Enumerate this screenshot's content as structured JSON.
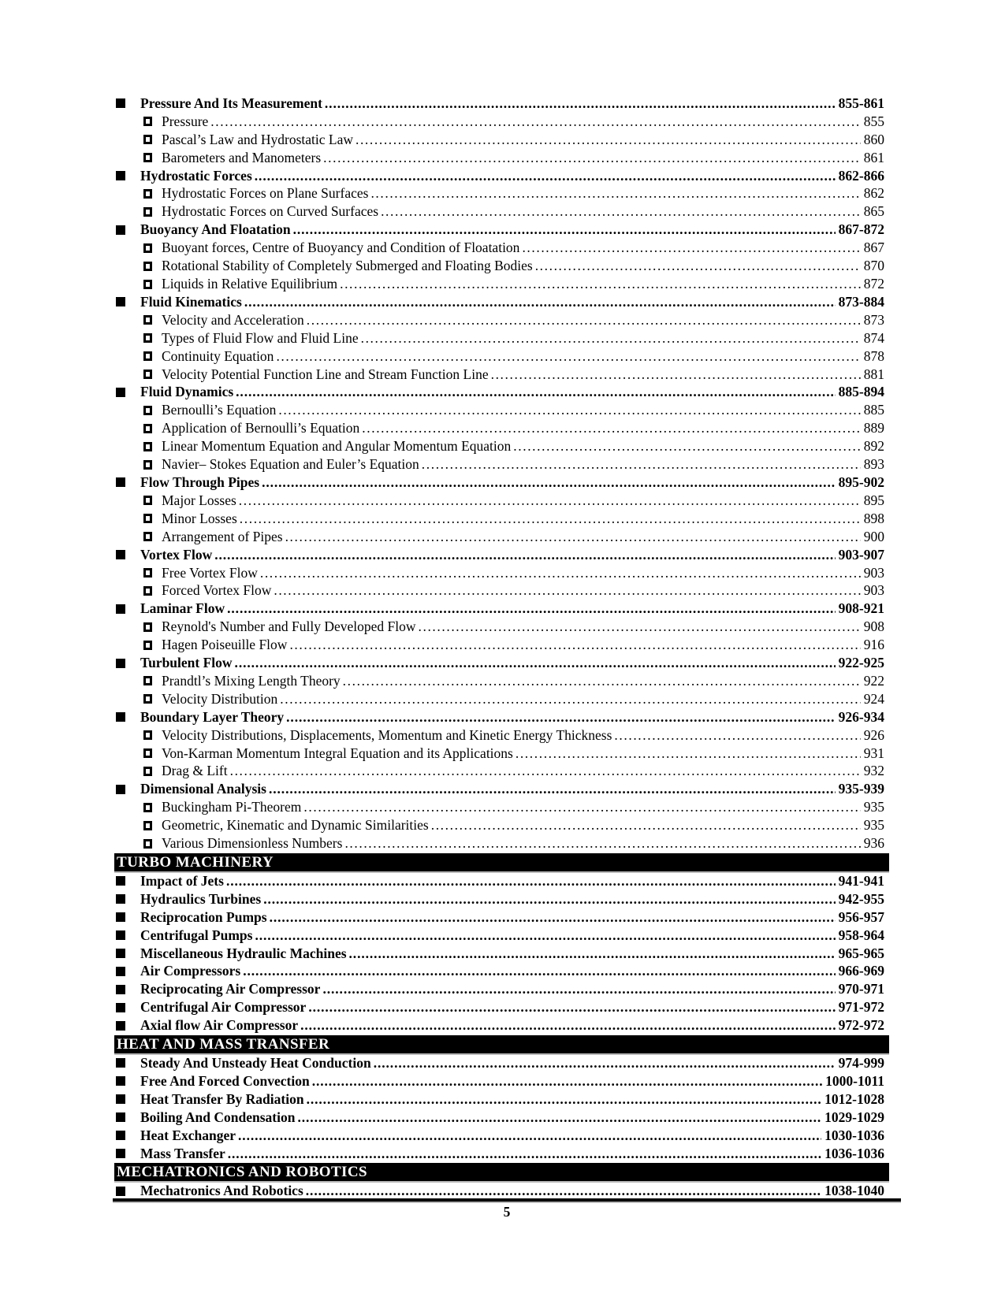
{
  "toc": [
    {
      "kind": "chapter",
      "label": "Pressure And Its Measurement",
      "pages": "855-861"
    },
    {
      "kind": "topic",
      "label": "Pressure",
      "pages": "855"
    },
    {
      "kind": "topic",
      "label": "Pascal’s Law and Hydrostatic Law",
      "pages": "860"
    },
    {
      "kind": "topic",
      "label": "Barometers and Manometers",
      "pages": "861"
    },
    {
      "kind": "chapter",
      "label": "Hydrostatic Forces",
      "pages": "862-866"
    },
    {
      "kind": "topic",
      "label": "Hydrostatic Forces on Plane Surfaces",
      "pages": "862"
    },
    {
      "kind": "topic",
      "label": "Hydrostatic Forces on Curved Surfaces",
      "pages": "865"
    },
    {
      "kind": "chapter",
      "label": "Buoyancy And Floatation",
      "pages": "867-872"
    },
    {
      "kind": "topic",
      "label": "Buoyant forces, Centre of Buoyancy and Condition of Floatation",
      "pages": "867"
    },
    {
      "kind": "topic",
      "label": "Rotational Stability of Completely Submerged and Floating Bodies",
      "pages": "870"
    },
    {
      "kind": "topic",
      "label": "Liquids in Relative Equilibrium",
      "pages": "872"
    },
    {
      "kind": "chapter",
      "label": "Fluid Kinematics",
      "pages": "873-884"
    },
    {
      "kind": "topic",
      "label": "Velocity and Acceleration",
      "pages": "873"
    },
    {
      "kind": "topic",
      "label": "Types of Fluid Flow and Fluid Line",
      "pages": "874"
    },
    {
      "kind": "topic",
      "label": "Continuity Equation",
      "pages": "878"
    },
    {
      "kind": "topic",
      "label": "Velocity Potential Function Line and Stream Function Line",
      "pages": "881"
    },
    {
      "kind": "chapter",
      "label": "Fluid Dynamics",
      "pages": "885-894"
    },
    {
      "kind": "topic",
      "label": "Bernoulli’s Equation",
      "pages": "885"
    },
    {
      "kind": "topic",
      "label": "Application of Bernoulli’s Equation",
      "pages": "889"
    },
    {
      "kind": "topic",
      "label": "Linear Momentum Equation and Angular Momentum Equation",
      "pages": "892"
    },
    {
      "kind": "topic",
      "label": "Navier– Stokes Equation and Euler’s Equation",
      "pages": "893"
    },
    {
      "kind": "chapter",
      "label": "Flow Through Pipes",
      "pages": "895-902"
    },
    {
      "kind": "topic",
      "label": "Major Losses",
      "pages": "895"
    },
    {
      "kind": "topic",
      "label": "Minor Losses",
      "pages": "898"
    },
    {
      "kind": "topic",
      "label": "Arrangement of Pipes",
      "pages": "900"
    },
    {
      "kind": "chapter",
      "label": "Vortex Flow",
      "pages": "903-907"
    },
    {
      "kind": "topic",
      "label": "Free Vortex Flow",
      "pages": "903"
    },
    {
      "kind": "topic",
      "label": "Forced Vortex Flow",
      "pages": "903"
    },
    {
      "kind": "chapter",
      "label": "Laminar Flow",
      "pages": "908-921"
    },
    {
      "kind": "topic",
      "label": "Reynold's Number and Fully Developed Flow",
      "pages": "908"
    },
    {
      "kind": "topic",
      "label": "Hagen Poiseuille Flow",
      "pages": "916"
    },
    {
      "kind": "chapter",
      "label": "Turbulent Flow",
      "pages": "922-925"
    },
    {
      "kind": "topic",
      "label": "Prandtl’s Mixing Length Theory",
      "pages": "922"
    },
    {
      "kind": "topic",
      "label": "Velocity Distribution",
      "pages": "924"
    },
    {
      "kind": "chapter",
      "label": "Boundary Layer Theory",
      "pages": "926-934"
    },
    {
      "kind": "topic",
      "label": "Velocity Distributions, Displacements, Momentum and Kinetic Energy Thickness",
      "pages": "926"
    },
    {
      "kind": "topic",
      "label": "Von-Karman Momentum Integral Equation and its Applications",
      "pages": "931"
    },
    {
      "kind": "topic",
      "label": "Drag & Lift",
      "pages": "932"
    },
    {
      "kind": "chapter",
      "label": "Dimensional Analysis",
      "pages": "935-939"
    },
    {
      "kind": "topic",
      "label": "Buckingham Pi-Theorem",
      "pages": "935"
    },
    {
      "kind": "topic",
      "label": "Geometric, Kinematic and Dynamic Similarities",
      "pages": "935"
    },
    {
      "kind": "topic",
      "label": "Various Dimensionless Numbers",
      "pages": "936"
    },
    {
      "kind": "section",
      "label": "TURBO MACHINERY"
    },
    {
      "kind": "chapter",
      "label": "Impact of Jets",
      "pages": "941-941"
    },
    {
      "kind": "chapter",
      "label": "Hydraulics Turbines",
      "pages": "942-955"
    },
    {
      "kind": "chapter",
      "label": "Reciprocation Pumps",
      "pages": "956-957"
    },
    {
      "kind": "chapter",
      "label": "Centrifugal Pumps",
      "pages": "958-964"
    },
    {
      "kind": "chapter",
      "label": "Miscellaneous Hydraulic Machines",
      "pages": "965-965"
    },
    {
      "kind": "chapter",
      "label": "Air Compressors",
      "pages": "966-969"
    },
    {
      "kind": "chapter",
      "label": "Reciprocating Air Compressor",
      "pages": "970-971"
    },
    {
      "kind": "chapter",
      "label": "Centrifugal Air Compressor",
      "pages": "971-972"
    },
    {
      "kind": "chapter",
      "label": "Axial flow Air Compressor",
      "pages": "972-972"
    },
    {
      "kind": "section",
      "label": "HEAT AND MASS TRANSFER"
    },
    {
      "kind": "chapter",
      "label": "Steady And Unsteady Heat Conduction",
      "pages": "974-999"
    },
    {
      "kind": "chapter",
      "label": "Free And Forced Convection",
      "pages": "1000-1011"
    },
    {
      "kind": "chapter",
      "label": "Heat Transfer By Radiation",
      "pages": "1012-1028"
    },
    {
      "kind": "chapter",
      "label": "Boiling And Condensation",
      "pages": "1029-1029"
    },
    {
      "kind": "chapter",
      "label": "Heat Exchanger",
      "pages": "1030-1036"
    },
    {
      "kind": "chapter",
      "label": "Mass Transfer",
      "pages": "1036-1036"
    },
    {
      "kind": "section",
      "label": "MECHATRONICS AND ROBOTICS"
    },
    {
      "kind": "chapter",
      "label": "Mechatronics And Robotics",
      "pages": "1038-1040"
    }
  ],
  "footer": {
    "page_number": "5"
  }
}
